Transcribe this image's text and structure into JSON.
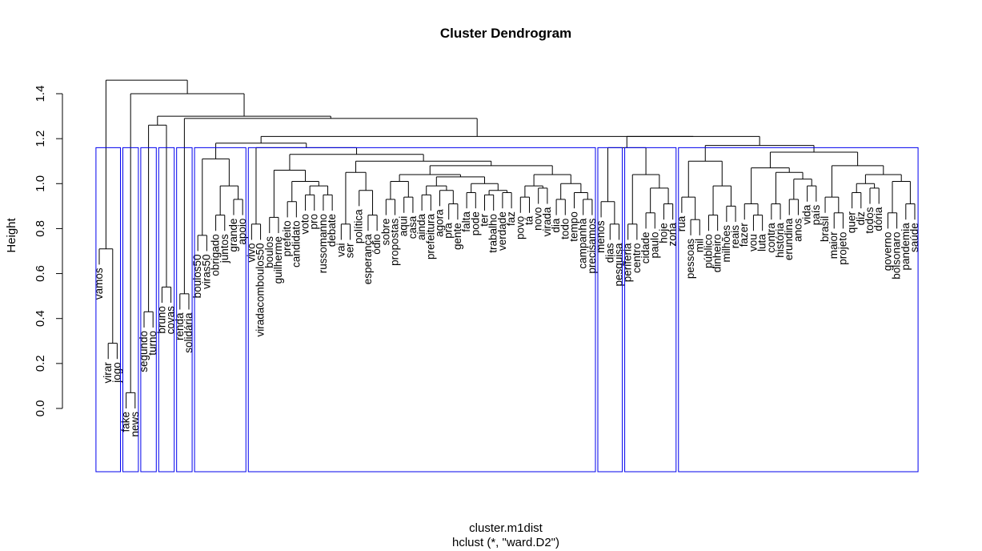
{
  "chart_data": {
    "type": "dendrogram",
    "title": "Cluster Dendrogram",
    "ylabel": "Height",
    "xlabel": "cluster.m1dist",
    "sublabel": "hclust (*, \"ward.D2\")",
    "ylim": [
      0,
      1.45
    ],
    "yticks": [
      "0.0",
      "0.2",
      "0.4",
      "0.6",
      "0.8",
      "1.0",
      "1.2",
      "1.4"
    ],
    "rect_height": 1.16,
    "rect_color": "#0000ee",
    "line_color": "#000000",
    "leaves": [
      "vamos",
      "virar",
      "jogo",
      "fake",
      "news",
      "segundo",
      "turno",
      "bruno",
      "covas",
      "renda",
      "solidaria",
      "boulos50",
      "viras50",
      "obrigado",
      "juntos",
      "grande",
      "apoio",
      "vivo",
      "viradacomboulos50",
      "boulos",
      "guilherme",
      "prefeito",
      "candidato",
      "voto",
      "pro",
      "russomanno",
      "debate",
      "vai",
      "ser",
      "politica",
      "esperanca",
      "odio",
      "sobre",
      "propostas",
      "aqui",
      "casa",
      "ainda",
      "prefeitura",
      "agora",
      "pra",
      "gente",
      "falta",
      "pode",
      "ter",
      "trabalho",
      "verdade",
      "faz",
      "povo",
      "ta",
      "novo",
      "virada",
      "dia",
      "todo",
      "tempo",
      "campanha",
      "precisamos",
      "menos",
      "dias",
      "pesquisa",
      "periferia",
      "centro",
      "cidade",
      "paulo",
      "hoje",
      "zona",
      "rua",
      "pessoas",
      "mil",
      "publico",
      "dinheiro",
      "milhoes",
      "reais",
      "fazer",
      "vou",
      "luta",
      "contra",
      "historia",
      "erundina",
      "anos",
      "vida",
      "pais",
      "brasil",
      "maior",
      "projeto",
      "quer",
      "diz",
      "todos",
      "doria",
      "governo",
      "bolsonaro",
      "pandemia",
      "saude"
    ],
    "leaf_display": [
      "vamos",
      "virar",
      "jogo",
      "fake",
      "news",
      "segundo",
      "turno",
      "bruno",
      "covas",
      "renda",
      "solidária",
      "boulos50",
      "viras50",
      "obrigado",
      "juntos",
      "grande",
      "apoio",
      "vivo",
      "viradacomboulos50",
      "boulos",
      "guilherme",
      "prefeito",
      "candidato",
      "voto",
      "pro",
      "russomanno",
      "debate",
      "vai",
      "ser",
      "política",
      "esperança",
      "ódio",
      "sobre",
      "propostas",
      "aqui",
      "casa",
      "ainda",
      "prefeitura",
      "agora",
      "pra",
      "gente",
      "falta",
      "pode",
      "ter",
      "trabalho",
      "verdade",
      "faz",
      "povo",
      "tá",
      "novo",
      "virada",
      "dia",
      "todo",
      "tempo",
      "campanha",
      "precisamos",
      "menos",
      "dias",
      "pesquisa",
      "periferia",
      "centro",
      "cidade",
      "paulo",
      "hoje",
      "zona",
      "rua",
      "pessoas",
      "mil",
      "público",
      "dinheiro",
      "milhões",
      "reais",
      "fazer",
      "vou",
      "luta",
      "contra",
      "história",
      "erundina",
      "anos",
      "vida",
      "país",
      "brasil",
      "maior",
      "projeto",
      "quer",
      "diz",
      "todos",
      "dória",
      "governo",
      "bolsonaro",
      "pandemia",
      "saúde"
    ],
    "tree": [
      1.46,
      [
        0.71,
        "vamos",
        [
          0.29,
          "virar",
          "jogo"
        ]
      ],
      [
        1.4,
        [
          0.07,
          "fake",
          "news"
        ],
        [
          1.3,
          [
            1.26,
            [
              0.43,
              "segundo",
              "turno"
            ],
            [
              0.54,
              "bruno",
              "covas"
            ]
          ],
          [
            1.29,
            [
              0.51,
              "renda",
              "solidaria"
            ],
            [
              1.21,
              [
                1.18,
                [
                  1.11,
                  [
                    0.77,
                    "boulos50",
                    "viras50"
                  ],
                  [
                    0.99,
                    [
                      0.86,
                      "obrigado",
                      "juntos"
                    ],
                    [
                      0.93,
                      "grande",
                      "apoio"
                    ]
                  ]
                ],
                [
                  1.16,
                  [
                    0.82,
                    "vivo",
                    "viradacomboulos50"
                  ],
                  [
                    1.13,
                    [
                      1.06,
                      [
                        0.85,
                        "boulos",
                        "guilherme"
                      ],
                      [
                        1.01,
                        [
                          0.92,
                          "prefeito",
                          "candidato"
                        ],
                        [
                          0.99,
                          [
                            0.95,
                            "voto",
                            "pro"
                          ],
                          [
                            0.95,
                            "russomanno",
                            "debate"
                          ]
                        ]
                      ]
                    ],
                    [
                      1.1,
                      [
                        1.05,
                        [
                          0.82,
                          "vai",
                          "ser"
                        ],
                        [
                          0.97,
                          "politica",
                          [
                            0.86,
                            "esperanca",
                            "odio"
                          ]
                        ]
                      ],
                      [
                        1.08,
                        [
                          1.04,
                          [
                            1.01,
                            [
                              0.93,
                              "sobre",
                              "propostas"
                            ],
                            [
                              0.94,
                              "aqui",
                              "casa"
                            ]
                          ],
                          [
                            1.03,
                            [
                              0.99,
                              [
                                0.95,
                                "ainda",
                                "prefeitura"
                              ],
                              [
                                0.97,
                                "agora",
                                [
                                  0.91,
                                  "pra",
                                  "gente"
                                ]
                              ]
                            ],
                            [
                              1.0,
                              [
                                0.96,
                                "falta",
                                "pode"
                              ],
                              [
                                0.97,
                                [
                                  0.95,
                                  "ter",
                                  "trabalho"
                                ],
                                [
                                  0.96,
                                  "verdade",
                                  "faz"
                                ]
                              ]
                            ]
                          ]
                        ],
                        [
                          1.04,
                          [
                            0.99,
                            [
                              0.94,
                              "povo",
                              "ta"
                            ],
                            [
                              0.98,
                              "novo",
                              "virada"
                            ]
                          ],
                          [
                            1.0,
                            [
                              0.93,
                              "dia",
                              "todo"
                            ],
                            [
                              0.96,
                              "tempo",
                              [
                                0.93,
                                "campanha",
                                "precisamos"
                              ]
                            ]
                          ]
                        ]
                      ]
                    ]
                  ]
                ]
              ],
              [
                1.21,
                [
                  1.16,
                  [
                    0.92,
                    "menos",
                    [
                      0.82,
                      "dias",
                      "pesquisa"
                    ]
                  ],
                  [
                    1.04,
                    [
                      0.82,
                      "periferia",
                      "centro"
                    ],
                    [
                      0.98,
                      [
                        0.87,
                        "cidade",
                        "paulo"
                      ],
                      [
                        0.91,
                        "hoje",
                        "zona"
                      ]
                    ]
                  ]
                ],
                [
                  1.17,
                  [
                    1.1,
                    [
                      0.94,
                      "rua",
                      [
                        0.84,
                        "pessoas",
                        "mil"
                      ]
                    ],
                    [
                      0.99,
                      [
                        0.86,
                        "publico",
                        "dinheiro"
                      ],
                      [
                        0.9,
                        "milhoes",
                        "reais"
                      ]
                    ]
                  ],
                  [
                    1.14,
                    [
                      1.07,
                      [
                        0.91,
                        "fazer",
                        [
                          0.86,
                          "vou",
                          "luta"
                        ]
                      ],
                      [
                        1.05,
                        [
                          0.91,
                          "contra",
                          "historia"
                        ],
                        [
                          1.02,
                          [
                            0.93,
                            "erundina",
                            "anos"
                          ],
                          [
                            0.99,
                            "vida",
                            "pais"
                          ]
                        ]
                      ]
                    ],
                    [
                      1.08,
                      [
                        0.94,
                        "brasil",
                        [
                          0.87,
                          "maior",
                          "projeto"
                        ]
                      ],
                      [
                        1.04,
                        [
                          1.0,
                          [
                            0.96,
                            "quer",
                            "diz"
                          ],
                          [
                            0.98,
                            "todos",
                            "doria"
                          ]
                        ],
                        [
                          1.01,
                          [
                            0.87,
                            "governo",
                            "bolsonaro"
                          ],
                          [
                            0.91,
                            "pandemia",
                            "saude"
                          ]
                        ]
                      ]
                    ]
                  ]
                ]
              ]
            ]
          ]
        ]
      ]
    ],
    "clusters": [
      [
        "vamos",
        "jogo"
      ],
      [
        "fake",
        "news"
      ],
      [
        "segundo",
        "turno"
      ],
      [
        "bruno",
        "covas"
      ],
      [
        "renda",
        "solidaria"
      ],
      [
        "boulos50",
        "apoio"
      ],
      [
        "vivo",
        "precisamos"
      ],
      [
        "menos",
        "pesquisa"
      ],
      [
        "periferia",
        "zona"
      ],
      [
        "rua",
        "saude"
      ]
    ]
  }
}
